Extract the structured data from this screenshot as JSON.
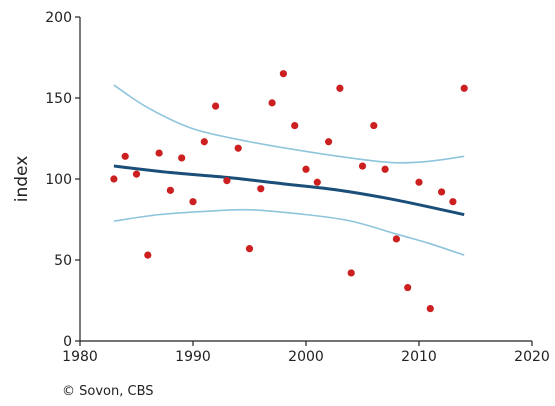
{
  "chart_data": {
    "type": "scatter",
    "ylabel": "index",
    "xlim": [
      1980,
      2020
    ],
    "ylim": [
      0,
      200
    ],
    "x_ticks": [
      1980,
      1990,
      2000,
      2010,
      2020
    ],
    "y_ticks": [
      0,
      50,
      100,
      150,
      200
    ],
    "grid": false,
    "legend": "none",
    "series": [
      {
        "kind": "points",
        "color": "#cc1f1f",
        "points": [
          [
            1983,
            100
          ],
          [
            1984,
            114
          ],
          [
            1985,
            103
          ],
          [
            1986,
            53
          ],
          [
            1987,
            116
          ],
          [
            1988,
            93
          ],
          [
            1989,
            113
          ],
          [
            1990,
            86
          ],
          [
            1991,
            123
          ],
          [
            1992,
            145
          ],
          [
            1993,
            99
          ],
          [
            1994,
            119
          ],
          [
            1995,
            57
          ],
          [
            1996,
            94
          ],
          [
            1997,
            147
          ],
          [
            1998,
            165
          ],
          [
            1999,
            133
          ],
          [
            2000,
            106
          ],
          [
            2001,
            98
          ],
          [
            2002,
            123
          ],
          [
            2003,
            156
          ],
          [
            2004,
            42
          ],
          [
            2005,
            108
          ],
          [
            2006,
            133
          ],
          [
            2007,
            106
          ],
          [
            2008,
            63
          ],
          [
            2009,
            33
          ],
          [
            2010,
            98
          ],
          [
            2011,
            20
          ],
          [
            2012,
            92
          ],
          [
            2013,
            86
          ],
          [
            2014,
            156
          ]
        ]
      },
      {
        "kind": "trend",
        "color": "#1b4f7a",
        "points": [
          [
            1983,
            108
          ],
          [
            1988,
            104
          ],
          [
            1993,
            101
          ],
          [
            1998,
            97
          ],
          [
            2003,
            93
          ],
          [
            2008,
            87
          ],
          [
            2014,
            78
          ]
        ]
      },
      {
        "kind": "upper-bound",
        "color": "#8ec5dc",
        "points": [
          [
            1983,
            158
          ],
          [
            1986,
            144
          ],
          [
            1990,
            131
          ],
          [
            1995,
            123
          ],
          [
            2000,
            117
          ],
          [
            2005,
            112
          ],
          [
            2008,
            110
          ],
          [
            2011,
            111
          ],
          [
            2014,
            114
          ]
        ]
      },
      {
        "kind": "lower-bound",
        "color": "#8ec5dc",
        "points": [
          [
            1983,
            74
          ],
          [
            1987,
            78
          ],
          [
            1991,
            80
          ],
          [
            1995,
            81
          ],
          [
            2000,
            78
          ],
          [
            2004,
            74
          ],
          [
            2008,
            66
          ],
          [
            2011,
            60
          ],
          [
            2014,
            53
          ]
        ]
      }
    ]
  },
  "credit": "© Sovon, CBS"
}
